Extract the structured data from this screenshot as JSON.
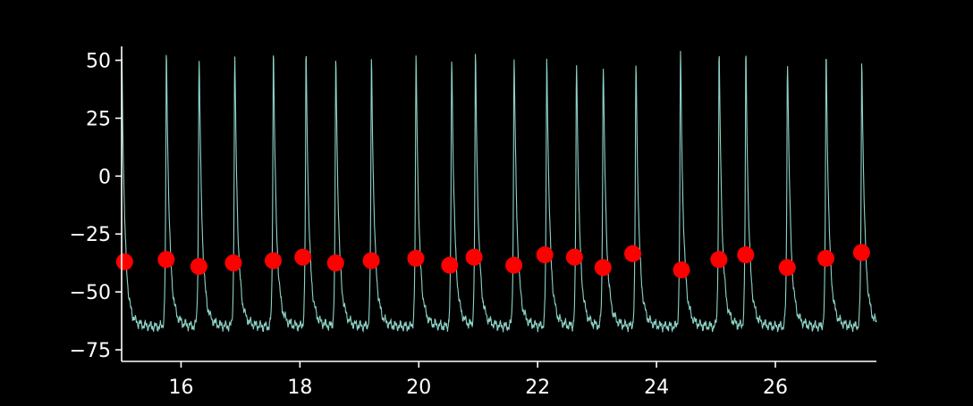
{
  "chart_data": {
    "type": "line",
    "title": "",
    "xlabel": "",
    "ylabel": "",
    "xlim": [
      15.0,
      27.7
    ],
    "ylim": [
      -80,
      56
    ],
    "x_ticks": [
      16,
      18,
      20,
      22,
      24,
      26
    ],
    "y_ticks": [
      50,
      25,
      0,
      -25,
      -50,
      -75
    ],
    "x_tick_labels": [
      "16",
      "18",
      "20",
      "22",
      "24",
      "26"
    ],
    "y_tick_labels": [
      "50",
      "25",
      "0",
      "−25",
      "−50",
      "−75"
    ],
    "grid": false,
    "trace": {
      "color": "#8dd3c7",
      "baseline": -65,
      "spike_times": [
        15.0,
        15.75,
        16.3,
        16.9,
        17.55,
        18.1,
        18.6,
        19.2,
        19.95,
        20.55,
        20.95,
        21.6,
        22.15,
        22.65,
        23.1,
        23.65,
        24.4,
        25.05,
        25.5,
        26.2,
        26.85,
        27.45
      ],
      "spike_peaks": [
        50,
        50,
        50,
        50,
        53,
        50,
        49,
        49,
        50,
        50,
        50,
        50,
        50,
        48,
        48,
        48,
        52,
        50,
        50,
        50,
        51,
        48
      ]
    },
    "series": [
      {
        "type": "scatter",
        "color": "#ff0000",
        "x": [
          15.05,
          15.75,
          16.3,
          16.88,
          17.55,
          18.05,
          18.6,
          19.2,
          19.95,
          20.52,
          20.93,
          21.6,
          22.12,
          22.62,
          23.1,
          23.6,
          24.42,
          25.05,
          25.5,
          26.2,
          26.85,
          27.45
        ],
        "y": [
          -37,
          -36,
          -39,
          -37.5,
          -36.5,
          -35,
          -37.5,
          -36.5,
          -35.5,
          -38.5,
          -35,
          -38.5,
          -34,
          -35,
          -39.5,
          -33.5,
          -40.5,
          -36,
          -34,
          -39.5,
          -35.5,
          -33
        ]
      }
    ]
  }
}
